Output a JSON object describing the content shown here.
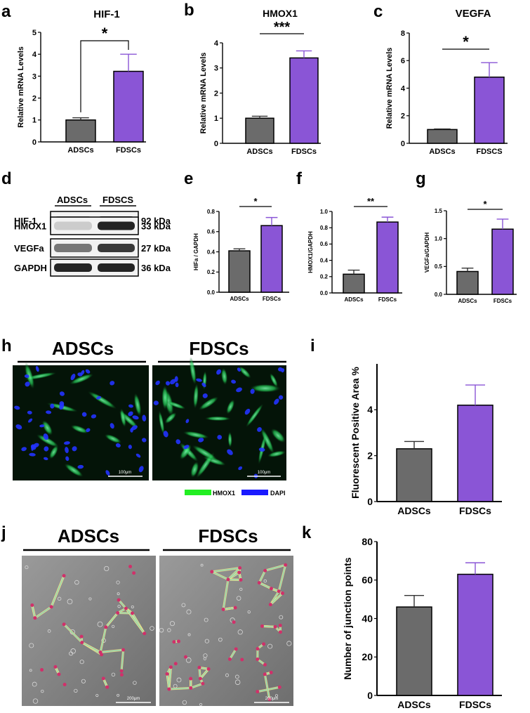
{
  "colors": {
    "adscs": "#6b6b6b",
    "fdscs": "#8a55d6",
    "hmox1_stain": "#22dd22",
    "dapi_stain": "#1a1aff",
    "i_ylabel": "#3b4a66"
  },
  "panel_labels": {
    "a": "a",
    "b": "b",
    "c": "c",
    "d": "d",
    "e": "e",
    "f": "f",
    "g": "g",
    "h": "h",
    "i": "i",
    "j": "j",
    "k": "k"
  },
  "chart_data": [
    {
      "id": "a",
      "type": "bar",
      "title": "HIF-1",
      "ylabel": "Relative mRNA Levels",
      "categories": [
        "ADSCs",
        "FDSCs"
      ],
      "values": [
        1.0,
        3.22
      ],
      "errors": [
        0.1,
        0.78
      ],
      "ylim": [
        0,
        5
      ],
      "yticks": [
        "0",
        "1",
        "2",
        "3",
        "4",
        "5"
      ],
      "significance": "*"
    },
    {
      "id": "b",
      "type": "bar",
      "title": "HMOX1",
      "ylabel": "Relative mRNA Levels",
      "categories": [
        "ADSCs",
        "FDSCs"
      ],
      "values": [
        1.0,
        3.4
      ],
      "errors": [
        0.08,
        0.28
      ],
      "ylim": [
        0,
        4
      ],
      "yticks": [
        "0",
        "1",
        "2",
        "3",
        "4"
      ],
      "significance": "***"
    },
    {
      "id": "c",
      "type": "bar",
      "title": "VEGFA",
      "ylabel": "Relative mRNA Levels",
      "categories": [
        "ADSCs",
        "FDSCS"
      ],
      "values": [
        1.0,
        4.8
      ],
      "errors": [
        0.04,
        1.05
      ],
      "ylim": [
        0,
        8
      ],
      "yticks": [
        "0",
        "2",
        "4",
        "6",
        "8"
      ],
      "significance": "*"
    },
    {
      "id": "e",
      "type": "bar",
      "title": "",
      "ylabel": "HIFa / GAPDH",
      "categories": [
        "ADSCs",
        "FDSCs"
      ],
      "values": [
        0.41,
        0.66
      ],
      "errors": [
        0.02,
        0.08
      ],
      "ylim": [
        0,
        0.8
      ],
      "yticks": [
        "0.0",
        "0.2",
        "0.4",
        "0.6",
        "0.8"
      ],
      "significance": "*"
    },
    {
      "id": "f",
      "type": "bar",
      "title": "",
      "ylabel": "HMOX1/GAPDH",
      "categories": [
        "ADSCs",
        "FDSCs"
      ],
      "values": [
        0.23,
        0.87
      ],
      "errors": [
        0.05,
        0.06
      ],
      "ylim": [
        0,
        1.0
      ],
      "yticks": [
        "0.0",
        "0.2",
        "0.4",
        "0.6",
        "0.8",
        "1.0"
      ],
      "significance": "**"
    },
    {
      "id": "g",
      "type": "bar",
      "title": "",
      "ylabel": "VEGFa/GAPDH",
      "categories": [
        "ADSCs",
        "FDSCs"
      ],
      "values": [
        0.41,
        1.17
      ],
      "errors": [
        0.06,
        0.18
      ],
      "ylim": [
        0,
        1.5
      ],
      "yticks": [
        "0.0",
        "0.5",
        "1.0",
        "1.5"
      ],
      "significance": "*"
    },
    {
      "id": "i",
      "type": "bar",
      "title": "",
      "ylabel": "Fluorescent Positive Area %",
      "categories": [
        "ADSCs",
        "FDSCs"
      ],
      "values": [
        2.3,
        4.2
      ],
      "errors": [
        0.32,
        0.88
      ],
      "ylim": [
        0,
        6
      ],
      "yticks": [
        "0",
        "2",
        "4"
      ],
      "significance": ""
    },
    {
      "id": "k",
      "type": "bar",
      "title": "",
      "ylabel": "Number of junction points",
      "categories": [
        "ADSCs",
        "FDSCs"
      ],
      "values": [
        46,
        63
      ],
      "errors": [
        6,
        6
      ],
      "ylim": [
        0,
        80
      ],
      "yticks": [
        "0",
        "20",
        "40",
        "60",
        "80"
      ],
      "significance": ""
    }
  ],
  "western_blot": {
    "headers": [
      "ADSCs",
      "FDSCS"
    ],
    "rows": [
      {
        "protein": "HIF-1",
        "kda": "92 kDa",
        "intensity": [
          0.45,
          0.9
        ]
      },
      {
        "protein": "HMOX1",
        "kda": "33 kDa",
        "intensity": [
          0.15,
          0.95
        ]
      },
      {
        "protein": "VEGFa",
        "kda": "27 kDa",
        "intensity": [
          0.55,
          0.85
        ]
      },
      {
        "protein": "GAPDH",
        "kda": "36 kDa",
        "intensity": [
          0.95,
          0.95
        ]
      }
    ]
  },
  "fluorescence": {
    "groups": [
      "ADSCs",
      "FDSCs"
    ],
    "scale_bar": "100μm",
    "legend": [
      "HMOX1",
      "DAPI"
    ]
  },
  "tube_formation": {
    "groups": [
      "ADSCs",
      "FDSCs"
    ],
    "scale_bar": "200μm"
  }
}
